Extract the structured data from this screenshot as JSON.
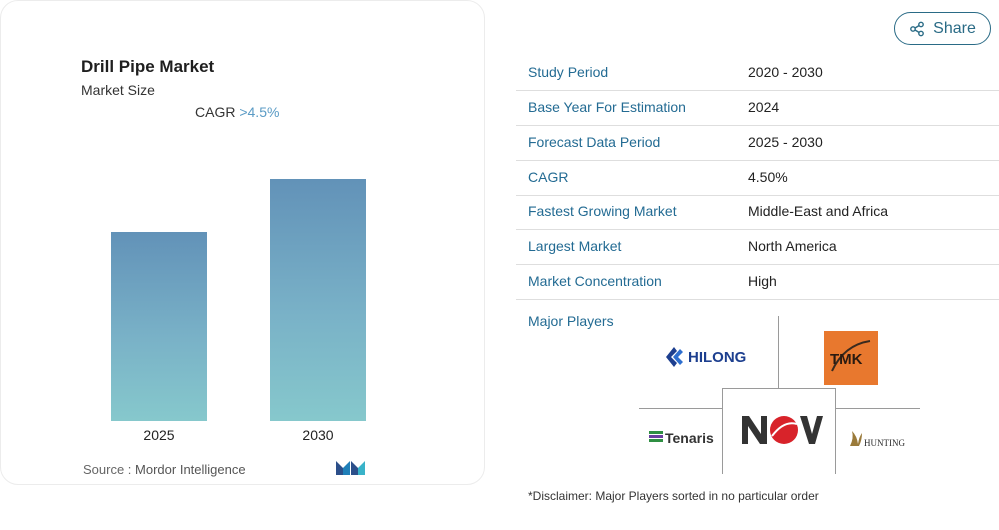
{
  "chart_card": {
    "title": "Drill Pipe Market",
    "subtitle": "Market Size",
    "cagr_label": "CAGR",
    "cagr_value": ">4.5%",
    "source_label": "Source :",
    "source_value": "Mordor Intelligence",
    "logo_name": "mordor-intelligence-logo"
  },
  "chart_data": {
    "type": "bar",
    "categories": [
      "2025",
      "2030"
    ],
    "values": [
      0.78,
      1.0
    ],
    "title": "Drill Pipe Market",
    "xlabel": "",
    "ylabel": "",
    "grid": false
  },
  "share": {
    "label": "Share",
    "icon": "share-icon"
  },
  "summary": {
    "rows": [
      {
        "key": "Study Period",
        "value": "2020 - 2030"
      },
      {
        "key": "Base Year For Estimation",
        "value": "2024"
      },
      {
        "key": "Forecast Data Period",
        "value": "2025 - 2030"
      },
      {
        "key": "CAGR",
        "value": "4.50%"
      },
      {
        "key": "Fastest Growing Market",
        "value": "Middle-East and Africa"
      },
      {
        "key": "Largest Market",
        "value": "North America"
      },
      {
        "key": "Market Concentration",
        "value": "High"
      }
    ],
    "major_players_label": "Major Players",
    "players": {
      "hilong": "HILONG",
      "tmk": "TMK",
      "tenaris": "Tenaris",
      "nov": "NOV",
      "hunting": "HUNTING"
    },
    "disclaimer": "*Disclaimer: Major Players sorted in no particular order"
  },
  "colors": {
    "accent": "#236b93",
    "bar_top": "#6292b8",
    "bar_bottom": "#86c8cc",
    "tmk_orange": "#e8782e",
    "nov_red": "#d8232a"
  }
}
